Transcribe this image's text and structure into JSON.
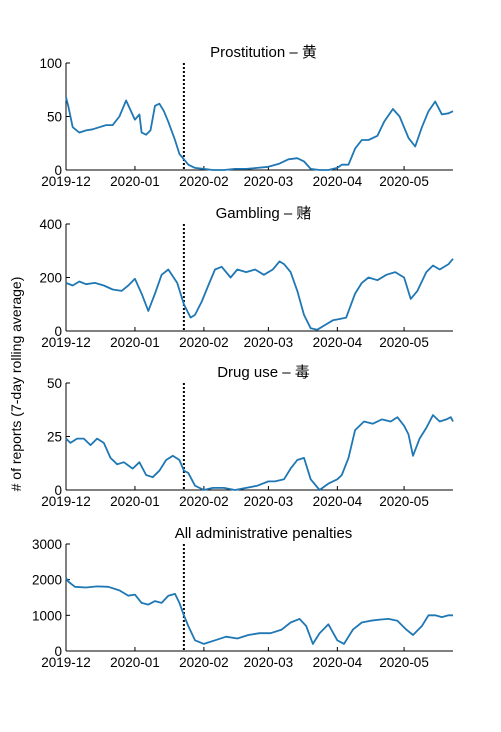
{
  "ylabel": "# of reports (7-day rolling average)",
  "line_color": "#1f77b4",
  "chart_data": [
    {
      "type": "line",
      "title": "Prostitution – 黄",
      "ylim": [
        0,
        100
      ],
      "yticks": [
        0,
        50,
        100
      ],
      "x_categories": [
        "2019-12",
        "2020-01",
        "2020-02",
        "2020-03",
        "2020-04",
        "2020-05"
      ],
      "marker_date": "2020-01-23",
      "series": [
        {
          "x": [
            "2019-12-01",
            "2019-12-02",
            "2019-12-04",
            "2019-12-07",
            "2019-12-10",
            "2019-12-13",
            "2019-12-16",
            "2019-12-19",
            "2019-12-22",
            "2019-12-25",
            "2019-12-28",
            "2020-01-01",
            "2020-01-03",
            "2020-01-04",
            "2020-01-06",
            "2020-01-08",
            "2020-01-10",
            "2020-01-12",
            "2020-01-14",
            "2020-01-16",
            "2020-01-19",
            "2020-01-21",
            "2020-01-23",
            "2020-01-25",
            "2020-01-28",
            "2020-02-01",
            "2020-02-05",
            "2020-02-10",
            "2020-02-15",
            "2020-02-20",
            "2020-02-25",
            "2020-03-01",
            "2020-03-06",
            "2020-03-10",
            "2020-03-14",
            "2020-03-17",
            "2020-03-20",
            "2020-03-24",
            "2020-03-28",
            "2020-04-01",
            "2020-04-03",
            "2020-04-06",
            "2020-04-09",
            "2020-04-12",
            "2020-04-15",
            "2020-04-19",
            "2020-04-22",
            "2020-04-26",
            "2020-04-29",
            "2020-05-03",
            "2020-05-06",
            "2020-05-09",
            "2020-05-12",
            "2020-05-15",
            "2020-05-18",
            "2020-05-21",
            "2020-05-23"
          ],
          "y": [
            68,
            60,
            40,
            35,
            37,
            38,
            40,
            42,
            42,
            50,
            65,
            47,
            52,
            35,
            33,
            37,
            60,
            62,
            55,
            45,
            28,
            15,
            10,
            5,
            2,
            1,
            0,
            0,
            1,
            1,
            2,
            3,
            6,
            10,
            11,
            8,
            1,
            0,
            0,
            2,
            5,
            5,
            20,
            28,
            28,
            32,
            45,
            57,
            50,
            30,
            22,
            40,
            55,
            64,
            52,
            53,
            55
          ]
        }
      ]
    },
    {
      "type": "line",
      "title": "Gambling – 赌",
      "ylim": [
        0,
        400
      ],
      "yticks": [
        0,
        200,
        400
      ],
      "x_categories": [
        "2019-12",
        "2020-01",
        "2020-02",
        "2020-03",
        "2020-04",
        "2020-05"
      ],
      "marker_date": "2020-01-23",
      "series": [
        {
          "x": [
            "2019-12-01",
            "2019-12-04",
            "2019-12-07",
            "2019-12-10",
            "2019-12-14",
            "2019-12-18",
            "2019-12-22",
            "2019-12-26",
            "2019-12-29",
            "2020-01-01",
            "2020-01-04",
            "2020-01-07",
            "2020-01-10",
            "2020-01-13",
            "2020-01-16",
            "2020-01-20",
            "2020-01-23",
            "2020-01-26",
            "2020-01-28",
            "2020-01-31",
            "2020-02-03",
            "2020-02-06",
            "2020-02-09",
            "2020-02-13",
            "2020-02-16",
            "2020-02-20",
            "2020-02-24",
            "2020-02-28",
            "2020-03-03",
            "2020-03-06",
            "2020-03-08",
            "2020-03-11",
            "2020-03-14",
            "2020-03-17",
            "2020-03-20",
            "2020-03-23",
            "2020-03-26",
            "2020-03-30",
            "2020-04-02",
            "2020-04-05",
            "2020-04-09",
            "2020-04-12",
            "2020-04-15",
            "2020-04-19",
            "2020-04-23",
            "2020-04-27",
            "2020-05-01",
            "2020-05-04",
            "2020-05-07",
            "2020-05-11",
            "2020-05-14",
            "2020-05-17",
            "2020-05-21",
            "2020-05-23"
          ],
          "y": [
            180,
            170,
            185,
            175,
            180,
            170,
            155,
            150,
            170,
            195,
            140,
            75,
            140,
            210,
            230,
            180,
            100,
            50,
            60,
            110,
            170,
            230,
            240,
            200,
            230,
            220,
            230,
            210,
            230,
            260,
            250,
            220,
            150,
            60,
            10,
            5,
            20,
            40,
            45,
            50,
            140,
            180,
            200,
            190,
            210,
            220,
            200,
            120,
            150,
            220,
            245,
            230,
            250,
            270
          ]
        }
      ]
    },
    {
      "type": "line",
      "title": "Drug use – 毒",
      "ylim": [
        0,
        50
      ],
      "yticks": [
        0,
        25,
        50
      ],
      "x_categories": [
        "2019-12",
        "2020-01",
        "2020-02",
        "2020-03",
        "2020-04",
        "2020-05"
      ],
      "marker_date": "2020-01-23",
      "series": [
        {
          "x": [
            "2019-12-01",
            "2019-12-03",
            "2019-12-06",
            "2019-12-09",
            "2019-12-12",
            "2019-12-15",
            "2019-12-18",
            "2019-12-21",
            "2019-12-24",
            "2019-12-27",
            "2019-12-31",
            "2020-01-03",
            "2020-01-06",
            "2020-01-09",
            "2020-01-12",
            "2020-01-15",
            "2020-01-18",
            "2020-01-21",
            "2020-01-23",
            "2020-01-25",
            "2020-01-28",
            "2020-02-01",
            "2020-02-05",
            "2020-02-10",
            "2020-02-15",
            "2020-02-20",
            "2020-02-25",
            "2020-03-01",
            "2020-03-04",
            "2020-03-08",
            "2020-03-11",
            "2020-03-14",
            "2020-03-17",
            "2020-03-20",
            "2020-03-24",
            "2020-03-28",
            "2020-04-01",
            "2020-04-03",
            "2020-04-06",
            "2020-04-09",
            "2020-04-13",
            "2020-04-17",
            "2020-04-21",
            "2020-04-25",
            "2020-04-28",
            "2020-05-01",
            "2020-05-03",
            "2020-05-05",
            "2020-05-08",
            "2020-05-11",
            "2020-05-14",
            "2020-05-17",
            "2020-05-20",
            "2020-05-22",
            "2020-05-23"
          ],
          "y": [
            24,
            22,
            24,
            24,
            21,
            24,
            22,
            15,
            12,
            13,
            10,
            13,
            7,
            6,
            9,
            14,
            16,
            14,
            9,
            8,
            2,
            0,
            1,
            1,
            0,
            1,
            2,
            4,
            4,
            5,
            10,
            14,
            15,
            5,
            0,
            3,
            5,
            7,
            15,
            28,
            32,
            31,
            33,
            32,
            34,
            30,
            26,
            16,
            24,
            29,
            35,
            32,
            33,
            34,
            32
          ]
        }
      ]
    },
    {
      "type": "line",
      "title": "All administrative penalties",
      "ylim": [
        0,
        3000
      ],
      "yticks": [
        0,
        1000,
        2000,
        3000
      ],
      "x_categories": [
        "2019-12",
        "2020-01",
        "2020-02",
        "2020-03",
        "2020-04",
        "2020-05"
      ],
      "marker_date": "2020-01-23",
      "series": [
        {
          "x": [
            "2019-12-01",
            "2019-12-02",
            "2019-12-05",
            "2019-12-10",
            "2019-12-15",
            "2019-12-20",
            "2019-12-25",
            "2019-12-29",
            "2020-01-01",
            "2020-01-04",
            "2020-01-07",
            "2020-01-10",
            "2020-01-13",
            "2020-01-16",
            "2020-01-19",
            "2020-01-21",
            "2020-01-23",
            "2020-01-25",
            "2020-01-28",
            "2020-02-01",
            "2020-02-06",
            "2020-02-11",
            "2020-02-16",
            "2020-02-21",
            "2020-02-26",
            "2020-03-02",
            "2020-03-07",
            "2020-03-11",
            "2020-03-15",
            "2020-03-18",
            "2020-03-21",
            "2020-03-24",
            "2020-03-28",
            "2020-04-01",
            "2020-04-04",
            "2020-04-08",
            "2020-04-12",
            "2020-04-16",
            "2020-04-20",
            "2020-04-24",
            "2020-04-28",
            "2020-05-02",
            "2020-05-05",
            "2020-05-09",
            "2020-05-12",
            "2020-05-15",
            "2020-05-18",
            "2020-05-21",
            "2020-05-23"
          ],
          "y": [
            2050,
            1950,
            1800,
            1780,
            1810,
            1800,
            1700,
            1550,
            1580,
            1350,
            1300,
            1400,
            1350,
            1550,
            1600,
            1350,
            1000,
            700,
            300,
            200,
            300,
            400,
            350,
            450,
            500,
            500,
            600,
            800,
            900,
            700,
            200,
            500,
            750,
            300,
            200,
            600,
            800,
            850,
            880,
            900,
            850,
            600,
            450,
            700,
            1000,
            1000,
            950,
            1000,
            1000
          ]
        }
      ]
    }
  ]
}
